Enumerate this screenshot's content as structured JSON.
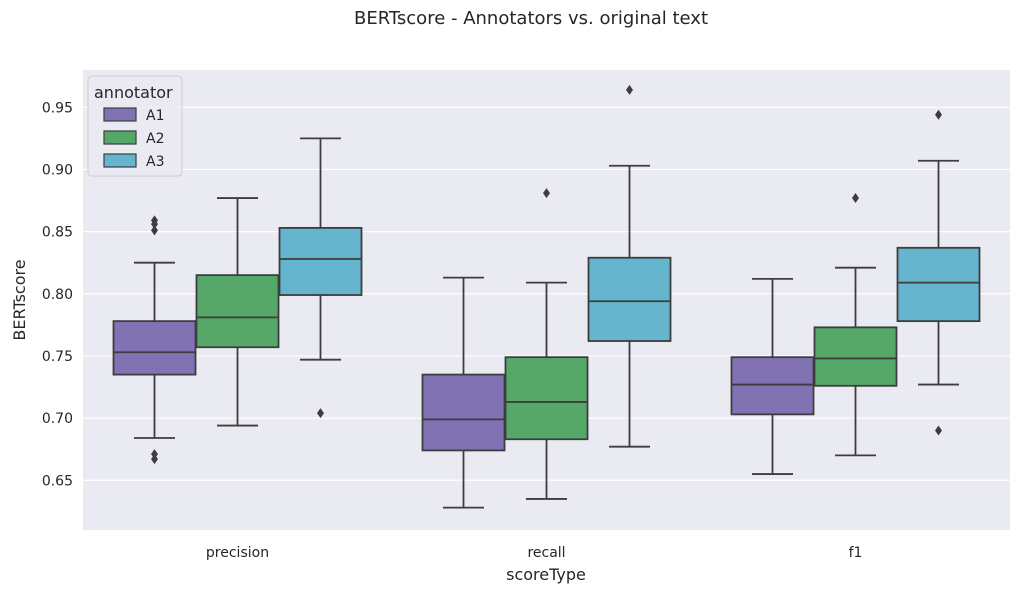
{
  "chart_data": {
    "type": "box",
    "title": "BERTscore - Annotators vs. original text",
    "xlabel": "scoreType",
    "ylabel": "BERTscore",
    "ylim": [
      0.61,
      0.98
    ],
    "yticks": [
      "0.65",
      "0.70",
      "0.75",
      "0.80",
      "0.85",
      "0.90",
      "0.95"
    ],
    "grid": true,
    "legend": {
      "title": "annotator",
      "position": "top-left"
    },
    "categories": [
      "precision",
      "recall",
      "f1"
    ],
    "series": [
      {
        "name": "A1",
        "color": "#8172b3",
        "boxes": [
          {
            "whisker_low": 0.684,
            "q1": 0.735,
            "median": 0.753,
            "q3": 0.778,
            "whisker_high": 0.825,
            "outliers": [
              0.859,
              0.856,
              0.851,
              0.671,
              0.667
            ]
          },
          {
            "whisker_low": 0.628,
            "q1": 0.674,
            "median": 0.699,
            "q3": 0.735,
            "whisker_high": 0.813,
            "outliers": []
          },
          {
            "whisker_low": 0.655,
            "q1": 0.703,
            "median": 0.727,
            "q3": 0.749,
            "whisker_high": 0.812,
            "outliers": []
          }
        ]
      },
      {
        "name": "A2",
        "color": "#55a868",
        "boxes": [
          {
            "whisker_low": 0.694,
            "q1": 0.757,
            "median": 0.781,
            "q3": 0.815,
            "whisker_high": 0.877,
            "outliers": []
          },
          {
            "whisker_low": 0.635,
            "q1": 0.683,
            "median": 0.713,
            "q3": 0.749,
            "whisker_high": 0.809,
            "outliers": [
              0.881
            ]
          },
          {
            "whisker_low": 0.67,
            "q1": 0.726,
            "median": 0.748,
            "q3": 0.773,
            "whisker_high": 0.821,
            "outliers": [
              0.877
            ]
          }
        ]
      },
      {
        "name": "A3",
        "color": "#64b5cd",
        "boxes": [
          {
            "whisker_low": 0.747,
            "q1": 0.799,
            "median": 0.828,
            "q3": 0.853,
            "whisker_high": 0.925,
            "outliers": [
              0.704
            ]
          },
          {
            "whisker_low": 0.677,
            "q1": 0.762,
            "median": 0.794,
            "q3": 0.829,
            "whisker_high": 0.903,
            "outliers": [
              0.964
            ]
          },
          {
            "whisker_low": 0.727,
            "q1": 0.778,
            "median": 0.809,
            "q3": 0.837,
            "whisker_high": 0.907,
            "outliers": [
              0.944,
              0.69
            ]
          }
        ]
      }
    ]
  }
}
